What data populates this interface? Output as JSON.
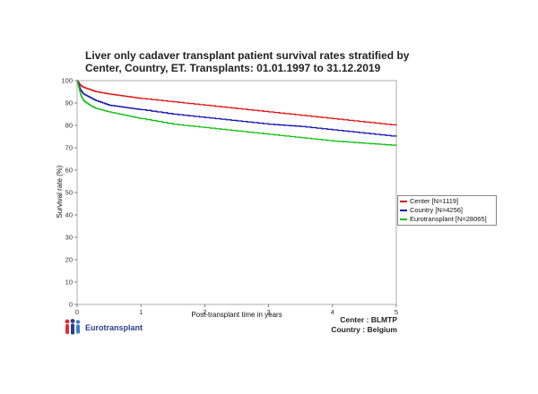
{
  "title_lines": [
    "Liver only cadaver transplant patient survival rates stratified by",
    "Center, Country, ET. Transplants: 01.01.1997 to 31.12.2019"
  ],
  "footer": {
    "center": "Center : BLMTP",
    "country": "Country : Belgium"
  },
  "logo": {
    "text": "Eurotransplant",
    "icon": "people-family-icon"
  },
  "chart_data": {
    "type": "line",
    "title": "Liver only cadaver transplant patient survival rates stratified by Center, Country, ET. Transplants: 01.01.1997 to 31.12.2019",
    "xlabel": "Post-transplant time in years",
    "ylabel": "Survival rate (%)",
    "xlim": [
      0,
      5
    ],
    "ylim": [
      0,
      100
    ],
    "xticks": [
      0,
      1,
      2,
      3,
      4,
      5
    ],
    "yticks": [
      0,
      10,
      20,
      30,
      40,
      50,
      60,
      70,
      80,
      90,
      100
    ],
    "grid": false,
    "legend_position": "right",
    "series": [
      {
        "name": "Center [N=1119]",
        "color": "#e01010",
        "x": [
          0,
          0.05,
          0.1,
          0.2,
          0.3,
          0.5,
          0.75,
          1.0,
          1.5,
          2.0,
          2.5,
          3.0,
          3.5,
          4.0,
          4.5,
          5.0
        ],
        "y": [
          100,
          98,
          97,
          96,
          95,
          94,
          93,
          92,
          90.5,
          89,
          87.5,
          86,
          84.5,
          83,
          81.5,
          80
        ]
      },
      {
        "name": "Country [N=4256]",
        "color": "#1010b0",
        "x": [
          0,
          0.05,
          0.1,
          0.2,
          0.3,
          0.5,
          0.75,
          1.0,
          1.5,
          2.0,
          2.5,
          3.0,
          3.5,
          4.0,
          4.5,
          5.0
        ],
        "y": [
          100,
          96,
          94,
          92.5,
          91,
          89,
          88,
          87,
          85,
          83.5,
          82,
          80.5,
          79.5,
          78,
          76.5,
          75
        ]
      },
      {
        "name": "Eurotransplant [N=28065]",
        "color": "#10c010",
        "x": [
          0,
          0.05,
          0.1,
          0.2,
          0.3,
          0.5,
          0.75,
          1.0,
          1.5,
          2.0,
          2.5,
          3.0,
          3.5,
          4.0,
          4.5,
          5.0
        ],
        "y": [
          100,
          94,
          91,
          89,
          87.5,
          86,
          84.5,
          83,
          80.5,
          79,
          77.5,
          76,
          74.5,
          73,
          72,
          71
        ]
      }
    ]
  }
}
